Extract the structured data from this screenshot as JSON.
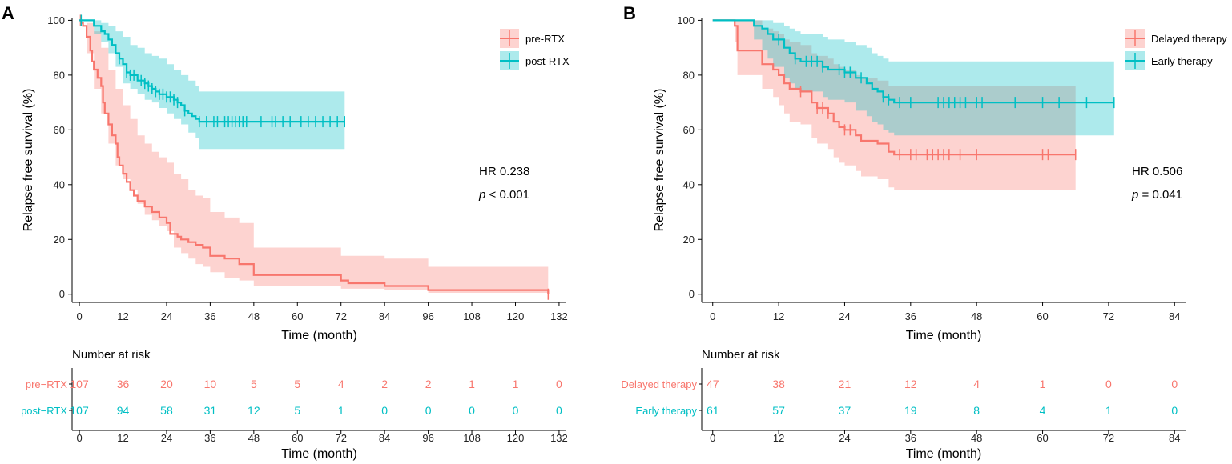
{
  "chart_data": [
    {
      "type": "line",
      "subtype": "kaplan-meier",
      "panel_label": "A",
      "xlabel": "Time (month)",
      "ylabel": "Relapse free survival (%)",
      "xlim": [
        -2,
        134
      ],
      "ylim": [
        -3,
        101
      ],
      "x_ticks": [
        0,
        12,
        24,
        36,
        48,
        60,
        72,
        84,
        96,
        108,
        120,
        132
      ],
      "y_ticks": [
        0,
        20,
        40,
        60,
        80,
        100
      ],
      "legend_position": "top-right",
      "stats": {
        "hr": "HR 0.238",
        "p_label": "p",
        "p_value": " < 0.001"
      },
      "series": [
        {
          "name": "pre-RTX",
          "color": "#F8766D",
          "steps": [
            [
              0,
              100
            ],
            [
              0.5,
              99
            ],
            [
              1,
              98
            ],
            [
              2,
              94
            ],
            [
              3,
              89
            ],
            [
              3.5,
              85
            ],
            [
              4,
              82
            ],
            [
              5,
              79
            ],
            [
              6,
              76
            ],
            [
              6.5,
              70
            ],
            [
              7,
              66
            ],
            [
              8,
              62
            ],
            [
              9,
              58
            ],
            [
              10,
              55
            ],
            [
              10.5,
              50
            ],
            [
              11,
              47
            ],
            [
              12,
              44
            ],
            [
              13,
              41
            ],
            [
              14,
              38
            ],
            [
              15,
              36
            ],
            [
              16,
              34
            ],
            [
              18,
              32
            ],
            [
              20,
              30
            ],
            [
              22,
              28
            ],
            [
              24,
              26
            ],
            [
              25,
              22
            ],
            [
              27,
              21
            ],
            [
              28,
              20
            ],
            [
              30,
              19
            ],
            [
              32,
              18
            ],
            [
              34,
              17
            ],
            [
              36,
              14
            ],
            [
              40,
              13
            ],
            [
              44,
              11
            ],
            [
              48,
              7
            ],
            [
              72,
              5
            ],
            [
              74,
              4
            ],
            [
              84,
              3
            ],
            [
              96,
              1.5
            ],
            [
              129,
              0
            ]
          ],
          "ci_steps": [
            [
              0,
              100,
              100
            ],
            [
              2,
              99,
              88
            ],
            [
              4,
              96,
              75
            ],
            [
              6,
              90,
              66
            ],
            [
              8,
              82,
              55
            ],
            [
              10,
              75,
              47
            ],
            [
              12,
              69,
              42
            ],
            [
              14,
              64,
              38
            ],
            [
              16,
              58,
              33
            ],
            [
              18,
              55,
              29
            ],
            [
              20,
              52,
              27
            ],
            [
              22,
              50,
              25
            ],
            [
              24,
              48,
              23
            ],
            [
              26,
              44,
              17
            ],
            [
              28,
              42,
              15
            ],
            [
              30,
              38,
              13
            ],
            [
              32,
              36,
              11
            ],
            [
              34,
              35,
              10
            ],
            [
              36,
              30,
              8
            ],
            [
              40,
              28,
              6
            ],
            [
              44,
              26,
              5
            ],
            [
              48,
              17,
              3
            ],
            [
              72,
              14,
              2
            ],
            [
              84,
              13,
              1.5
            ],
            [
              96,
              10,
              0.5
            ],
            [
              129,
              10,
              0
            ]
          ],
          "censor_times": [
            0.3,
            129
          ]
        },
        {
          "name": "post-RTX",
          "color": "#00BFC4",
          "steps": [
            [
              0,
              100
            ],
            [
              4,
              98
            ],
            [
              6,
              96
            ],
            [
              7,
              95
            ],
            [
              8,
              93
            ],
            [
              9,
              91
            ],
            [
              10,
              88
            ],
            [
              11,
              86
            ],
            [
              12,
              84
            ],
            [
              13,
              81
            ],
            [
              14,
              80
            ],
            [
              16,
              78
            ],
            [
              18,
              77
            ],
            [
              19,
              76
            ],
            [
              20,
              75
            ],
            [
              21,
              74
            ],
            [
              22,
              73
            ],
            [
              24,
              72
            ],
            [
              26,
              71
            ],
            [
              27,
              70
            ],
            [
              28,
              69
            ],
            [
              29,
              67
            ],
            [
              30,
              66
            ],
            [
              31,
              65
            ],
            [
              32,
              64
            ],
            [
              33,
              63
            ],
            [
              73,
              63
            ]
          ],
          "ci_steps": [
            [
              0,
              100,
              100
            ],
            [
              4,
              100,
              95
            ],
            [
              6,
              99,
              92
            ],
            [
              8,
              98,
              88
            ],
            [
              10,
              96,
              83
            ],
            [
              12,
              94,
              77
            ],
            [
              14,
              91,
              75
            ],
            [
              16,
              90,
              73
            ],
            [
              18,
              88,
              71
            ],
            [
              20,
              87,
              70
            ],
            [
              22,
              86,
              68
            ],
            [
              24,
              84,
              66
            ],
            [
              26,
              82,
              64
            ],
            [
              28,
              80,
              62
            ],
            [
              30,
              78,
              59
            ],
            [
              32,
              76,
              57
            ],
            [
              33,
              74,
              53
            ],
            [
              73,
              74,
              53
            ]
          ],
          "censor_times": [
            0.5,
            11,
            13,
            14,
            15,
            17,
            18,
            19,
            20,
            21,
            22,
            23,
            24,
            25,
            26,
            27,
            29,
            33,
            35,
            37,
            38,
            40,
            41,
            42,
            43,
            44,
            45,
            46,
            50,
            53,
            54,
            56,
            58,
            61,
            63,
            65,
            67,
            69,
            71,
            73
          ]
        }
      ],
      "risk_table": {
        "title": "Number at risk",
        "times": [
          0,
          12,
          24,
          36,
          48,
          60,
          72,
          84,
          96,
          108,
          120,
          132
        ],
        "rows": [
          {
            "label": "pre−RTX",
            "color": "#F8766D",
            "values": [
              "107",
              "36",
              "20",
              "10",
              "5",
              "5",
              "4",
              "2",
              "2",
              "1",
              "1",
              "0"
            ]
          },
          {
            "label": "post−RTX",
            "color": "#00BFC4",
            "values": [
              "107",
              "94",
              "58",
              "31",
              "12",
              "5",
              "1",
              "0",
              "0",
              "0",
              "0",
              "0"
            ]
          }
        ],
        "xlabel": "Time (month)"
      }
    },
    {
      "type": "line",
      "subtype": "kaplan-meier",
      "panel_label": "B",
      "xlabel": "Time (month)",
      "ylabel": "Relapse free survival (%)",
      "xlim": [
        -2,
        86
      ],
      "ylim": [
        -3,
        101
      ],
      "x_ticks": [
        0,
        12,
        24,
        36,
        48,
        60,
        72,
        84
      ],
      "y_ticks": [
        0,
        20,
        40,
        60,
        80,
        100
      ],
      "legend_position": "top-right",
      "stats": {
        "hr": "HR 0.506",
        "p_label": "p",
        "p_value": " = 0.041"
      },
      "series": [
        {
          "name": "Delayed therapy",
          "color": "#F8766D",
          "steps": [
            [
              0,
              100
            ],
            [
              4,
              98
            ],
            [
              4.5,
              89
            ],
            [
              9,
              84
            ],
            [
              11,
              82
            ],
            [
              12,
              80
            ],
            [
              13,
              77
            ],
            [
              14,
              75
            ],
            [
              16,
              74
            ],
            [
              18,
              70
            ],
            [
              19,
              68
            ],
            [
              21,
              66
            ],
            [
              22,
              63
            ],
            [
              23,
              61
            ],
            [
              24,
              60
            ],
            [
              26,
              58
            ],
            [
              27,
              56
            ],
            [
              30,
              55
            ],
            [
              32,
              52
            ],
            [
              33,
              51
            ],
            [
              66,
              51
            ]
          ],
          "ci_steps": [
            [
              0,
              100,
              100
            ],
            [
              4,
              100,
              92
            ],
            [
              4.5,
              100,
              80
            ],
            [
              9,
              97,
              75
            ],
            [
              11,
              96,
              72
            ],
            [
              12,
              95,
              69
            ],
            [
              13,
              93,
              66
            ],
            [
              14,
              92,
              63
            ],
            [
              16,
              91,
              62
            ],
            [
              18,
              88,
              57
            ],
            [
              19,
              87,
              55
            ],
            [
              21,
              86,
              53
            ],
            [
              22,
              84,
              50
            ],
            [
              23,
              83,
              48
            ],
            [
              24,
              82,
              47
            ],
            [
              26,
              80,
              45
            ],
            [
              27,
              79,
              43
            ],
            [
              30,
              78,
              42
            ],
            [
              32,
              76,
              39
            ],
            [
              33,
              76,
              38
            ],
            [
              66,
              76,
              38
            ]
          ],
          "censor_times": [
            16,
            19,
            20,
            21,
            24,
            25,
            34,
            36,
            37,
            39,
            40,
            41,
            42,
            43,
            45,
            48,
            60,
            61,
            66
          ]
        },
        {
          "name": "Early therapy",
          "color": "#00BFC4",
          "steps": [
            [
              0,
              100
            ],
            [
              7.5,
              98
            ],
            [
              9,
              97
            ],
            [
              10,
              95
            ],
            [
              11,
              93
            ],
            [
              13,
              90
            ],
            [
              14,
              88
            ],
            [
              15,
              86
            ],
            [
              16,
              85
            ],
            [
              20,
              83
            ],
            [
              21,
              82
            ],
            [
              24,
              81
            ],
            [
              26,
              79
            ],
            [
              28,
              77
            ],
            [
              29,
              75
            ],
            [
              30,
              74
            ],
            [
              31,
              72
            ],
            [
              32,
              71
            ],
            [
              33,
              70
            ],
            [
              73,
              70
            ]
          ],
          "ci_steps": [
            [
              0,
              100,
              100
            ],
            [
              7.5,
              100,
              93
            ],
            [
              9,
              100,
              89
            ],
            [
              10,
              100,
              86
            ],
            [
              11,
              99,
              83
            ],
            [
              13,
              98,
              79
            ],
            [
              14,
              97,
              77
            ],
            [
              15,
              96,
              75
            ],
            [
              16,
              95,
              74
            ],
            [
              20,
              94,
              72
            ],
            [
              21,
              93,
              71
            ],
            [
              24,
              92,
              70
            ],
            [
              26,
              91,
              67
            ],
            [
              28,
              90,
              65
            ],
            [
              29,
              88,
              63
            ],
            [
              30,
              87,
              62
            ],
            [
              31,
              86,
              60
            ],
            [
              32,
              85,
              59
            ],
            [
              33,
              85,
              58
            ],
            [
              73,
              85,
              58
            ]
          ],
          "censor_times": [
            12,
            15,
            17,
            18,
            19,
            20,
            23,
            24,
            25,
            27,
            31,
            32,
            34,
            36,
            41,
            42,
            43,
            44,
            45,
            46,
            48,
            49,
            55,
            60,
            63,
            68,
            73
          ]
        }
      ],
      "risk_table": {
        "title": "Number at risk",
        "times": [
          0,
          12,
          24,
          36,
          48,
          60,
          72,
          84
        ],
        "rows": [
          {
            "label": "Delayed therapy",
            "color": "#F8766D",
            "values": [
              "47",
              "38",
              "21",
              "12",
              "4",
              "1",
              "0",
              "0"
            ]
          },
          {
            "label": "Early therapy",
            "color": "#00BFC4",
            "values": [
              "61",
              "57",
              "37",
              "19",
              "8",
              "4",
              "1",
              "0"
            ]
          }
        ],
        "xlabel": "Time (month)"
      }
    }
  ]
}
